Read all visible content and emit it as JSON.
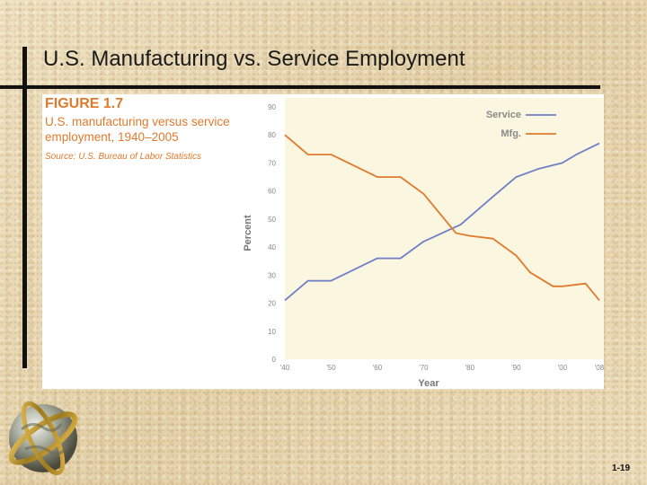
{
  "slide": {
    "title": "U.S. Manufacturing vs. Service Employment",
    "page_number": "1-19"
  },
  "figure": {
    "label": "FIGURE 1.7",
    "caption": "U.S. manufacturing versus service employment, 1940–2005",
    "source": "Source: U.S. Bureau of Labor Statistics"
  },
  "colors": {
    "service": "#6f7fc9",
    "mfg": "#e07a2c",
    "plot_bg": "#fbf6df",
    "axis_text": "#888888"
  },
  "chart_data": {
    "type": "line",
    "xlabel": "Year",
    "ylabel": "Percent",
    "xlim": [
      1940,
      2008
    ],
    "ylim": [
      0,
      90
    ],
    "x_ticks": [
      1940,
      1950,
      1960,
      1970,
      1980,
      1990,
      2000,
      2008
    ],
    "x_tick_labels": [
      "'40",
      "'50",
      "'60",
      "'70",
      "'80",
      "'90",
      "'00",
      "'08"
    ],
    "y_ticks": [
      0,
      10,
      20,
      30,
      40,
      50,
      60,
      70,
      80,
      90
    ],
    "grid": false,
    "legend": "top-right",
    "series": [
      {
        "name": "Service",
        "x": [
          1940,
          1945,
          1950,
          1960,
          1965,
          1970,
          1978,
          1985,
          1990,
          1995,
          2000,
          2003,
          2008
        ],
        "values": [
          21,
          28,
          28,
          36,
          36,
          42,
          48,
          58,
          65,
          68,
          70,
          73,
          77
        ]
      },
      {
        "name": "Mfg.",
        "x": [
          1940,
          1945,
          1950,
          1960,
          1965,
          1970,
          1977,
          1980,
          1985,
          1990,
          1993,
          1998,
          2000,
          2005,
          2008
        ],
        "values": [
          80,
          73,
          73,
          65,
          65,
          59,
          45,
          44,
          43,
          37,
          31,
          26,
          26,
          27,
          21
        ]
      }
    ]
  }
}
